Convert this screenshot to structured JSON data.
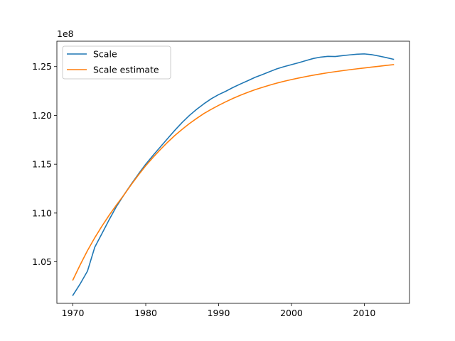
{
  "chart_data": {
    "type": "line",
    "title": "",
    "xlabel": "",
    "ylabel": "",
    "y_offset_label": "1e8",
    "xlim": [
      1967.8,
      2016.2
    ],
    "ylim": [
      1.0075,
      1.276
    ],
    "x_ticks": [
      1970,
      1980,
      1990,
      2000,
      2010
    ],
    "x_tick_labels": [
      "1970",
      "1980",
      "1990",
      "2000",
      "2010"
    ],
    "y_ticks": [
      1.05,
      1.1,
      1.15,
      1.2,
      1.25
    ],
    "y_tick_labels": [
      "1.05",
      "1.10",
      "1.15",
      "1.20",
      "1.25"
    ],
    "grid": false,
    "legend_position": "top-left",
    "x": [
      1970,
      1971,
      1972,
      1973,
      1974,
      1975,
      1976,
      1977,
      1978,
      1979,
      1980,
      1981,
      1982,
      1983,
      1984,
      1985,
      1986,
      1987,
      1988,
      1989,
      1990,
      1991,
      1992,
      1993,
      1994,
      1995,
      1996,
      1997,
      1998,
      1999,
      2000,
      2001,
      2002,
      2003,
      2004,
      2005,
      2006,
      2007,
      2008,
      2009,
      2010,
      2011,
      2012,
      2013,
      2014
    ],
    "series": [
      {
        "name": "Scale",
        "color": "#1f77b4",
        "values": [
          1.0158,
          1.0275,
          1.0405,
          1.065,
          1.0792,
          1.0935,
          1.107,
          1.1185,
          1.1295,
          1.14,
          1.15,
          1.159,
          1.1677,
          1.1763,
          1.1848,
          1.1928,
          1.2,
          1.2063,
          1.212,
          1.2171,
          1.2213,
          1.2248,
          1.2287,
          1.2322,
          1.2355,
          1.239,
          1.2418,
          1.2448,
          1.2477,
          1.25,
          1.252,
          1.254,
          1.2562,
          1.2583,
          1.2597,
          1.2605,
          1.2603,
          1.2612,
          1.262,
          1.2627,
          1.263,
          1.2622,
          1.2608,
          1.2592,
          1.2575
        ]
      },
      {
        "name": "Scale estimate",
        "color": "#ff7f0e",
        "values": [
          1.0315,
          1.047,
          1.0615,
          1.0747,
          1.0868,
          1.098,
          1.1085,
          1.1185,
          1.129,
          1.139,
          1.1485,
          1.157,
          1.165,
          1.1725,
          1.1795,
          1.1858,
          1.1917,
          1.197,
          1.202,
          1.2063,
          1.2103,
          1.214,
          1.2175,
          1.2207,
          1.2236,
          1.2263,
          1.2287,
          1.231,
          1.2331,
          1.235,
          1.2367,
          1.2383,
          1.2398,
          1.2412,
          1.2425,
          1.2437,
          1.2448,
          1.2458,
          1.2468,
          1.2477,
          1.2486,
          1.2495,
          1.2503,
          1.2512,
          1.252
        ]
      }
    ]
  }
}
